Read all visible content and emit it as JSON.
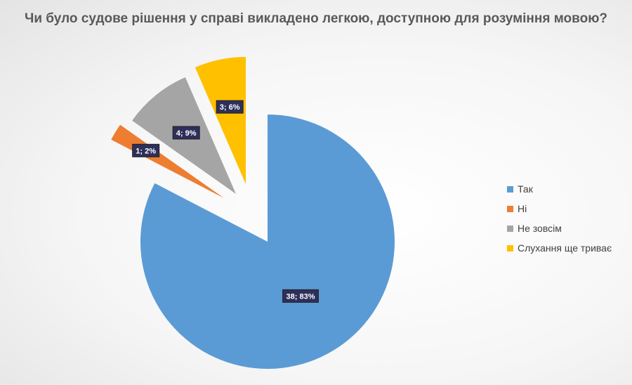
{
  "chart_data": {
    "type": "pie",
    "title": "Чи було судове рішення у справі викладено легкою, доступною для розуміння мовою?",
    "categories": [
      "Так",
      "Ні",
      "Не зовсім",
      "Слухання ще триває"
    ],
    "values": [
      38,
      1,
      4,
      3
    ],
    "percents": [
      83,
      2,
      9,
      6
    ],
    "data_labels": [
      "38; 83%",
      "1; 2%",
      "4; 9%",
      "3; 6%"
    ],
    "colors": [
      "#5b9bd5",
      "#ed7d31",
      "#a5a5a5",
      "#ffc000"
    ],
    "exploded": [
      false,
      true,
      true,
      true
    ],
    "legend_position": "right"
  }
}
